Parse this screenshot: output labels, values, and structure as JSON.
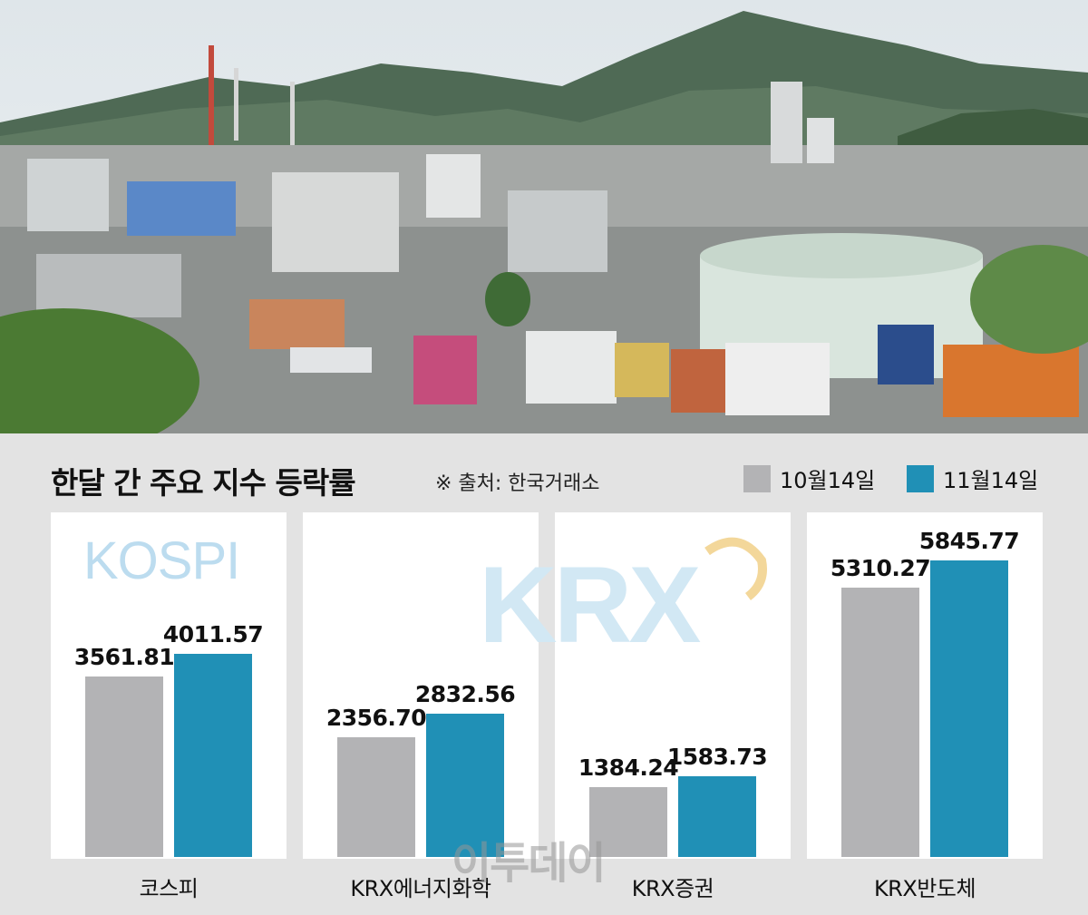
{
  "title": "한달 간 주요 지수 등락률",
  "source": "※ 출처: 한국거래소",
  "watermarks": {
    "kospi": "KOSPI",
    "krx": "KRX",
    "brand": "이투데이"
  },
  "colors": {
    "oct": "#b3b3b5",
    "nov": "#2090b6",
    "card": "#ffffff",
    "panel": "#e3e3e3"
  },
  "chart_data": {
    "type": "bar",
    "title": "한달 간 주요 지수 등락률",
    "categories": [
      "코스피",
      "KRX에너지화학",
      "KRX증권",
      "KRX반도체"
    ],
    "series": [
      {
        "name": "10월14일",
        "values": [
          3561.81,
          2356.7,
          1384.24,
          5310.27
        ],
        "labels": [
          "3561.81",
          "2356.70",
          "1384.24",
          "5310.27"
        ]
      },
      {
        "name": "11월14일",
        "values": [
          4011.57,
          2832.56,
          1583.73,
          5845.77
        ],
        "labels": [
          "4011.57",
          "2832.56",
          "1583.73",
          "5845.77"
        ]
      }
    ],
    "legend": "top-right",
    "grid": false
  }
}
